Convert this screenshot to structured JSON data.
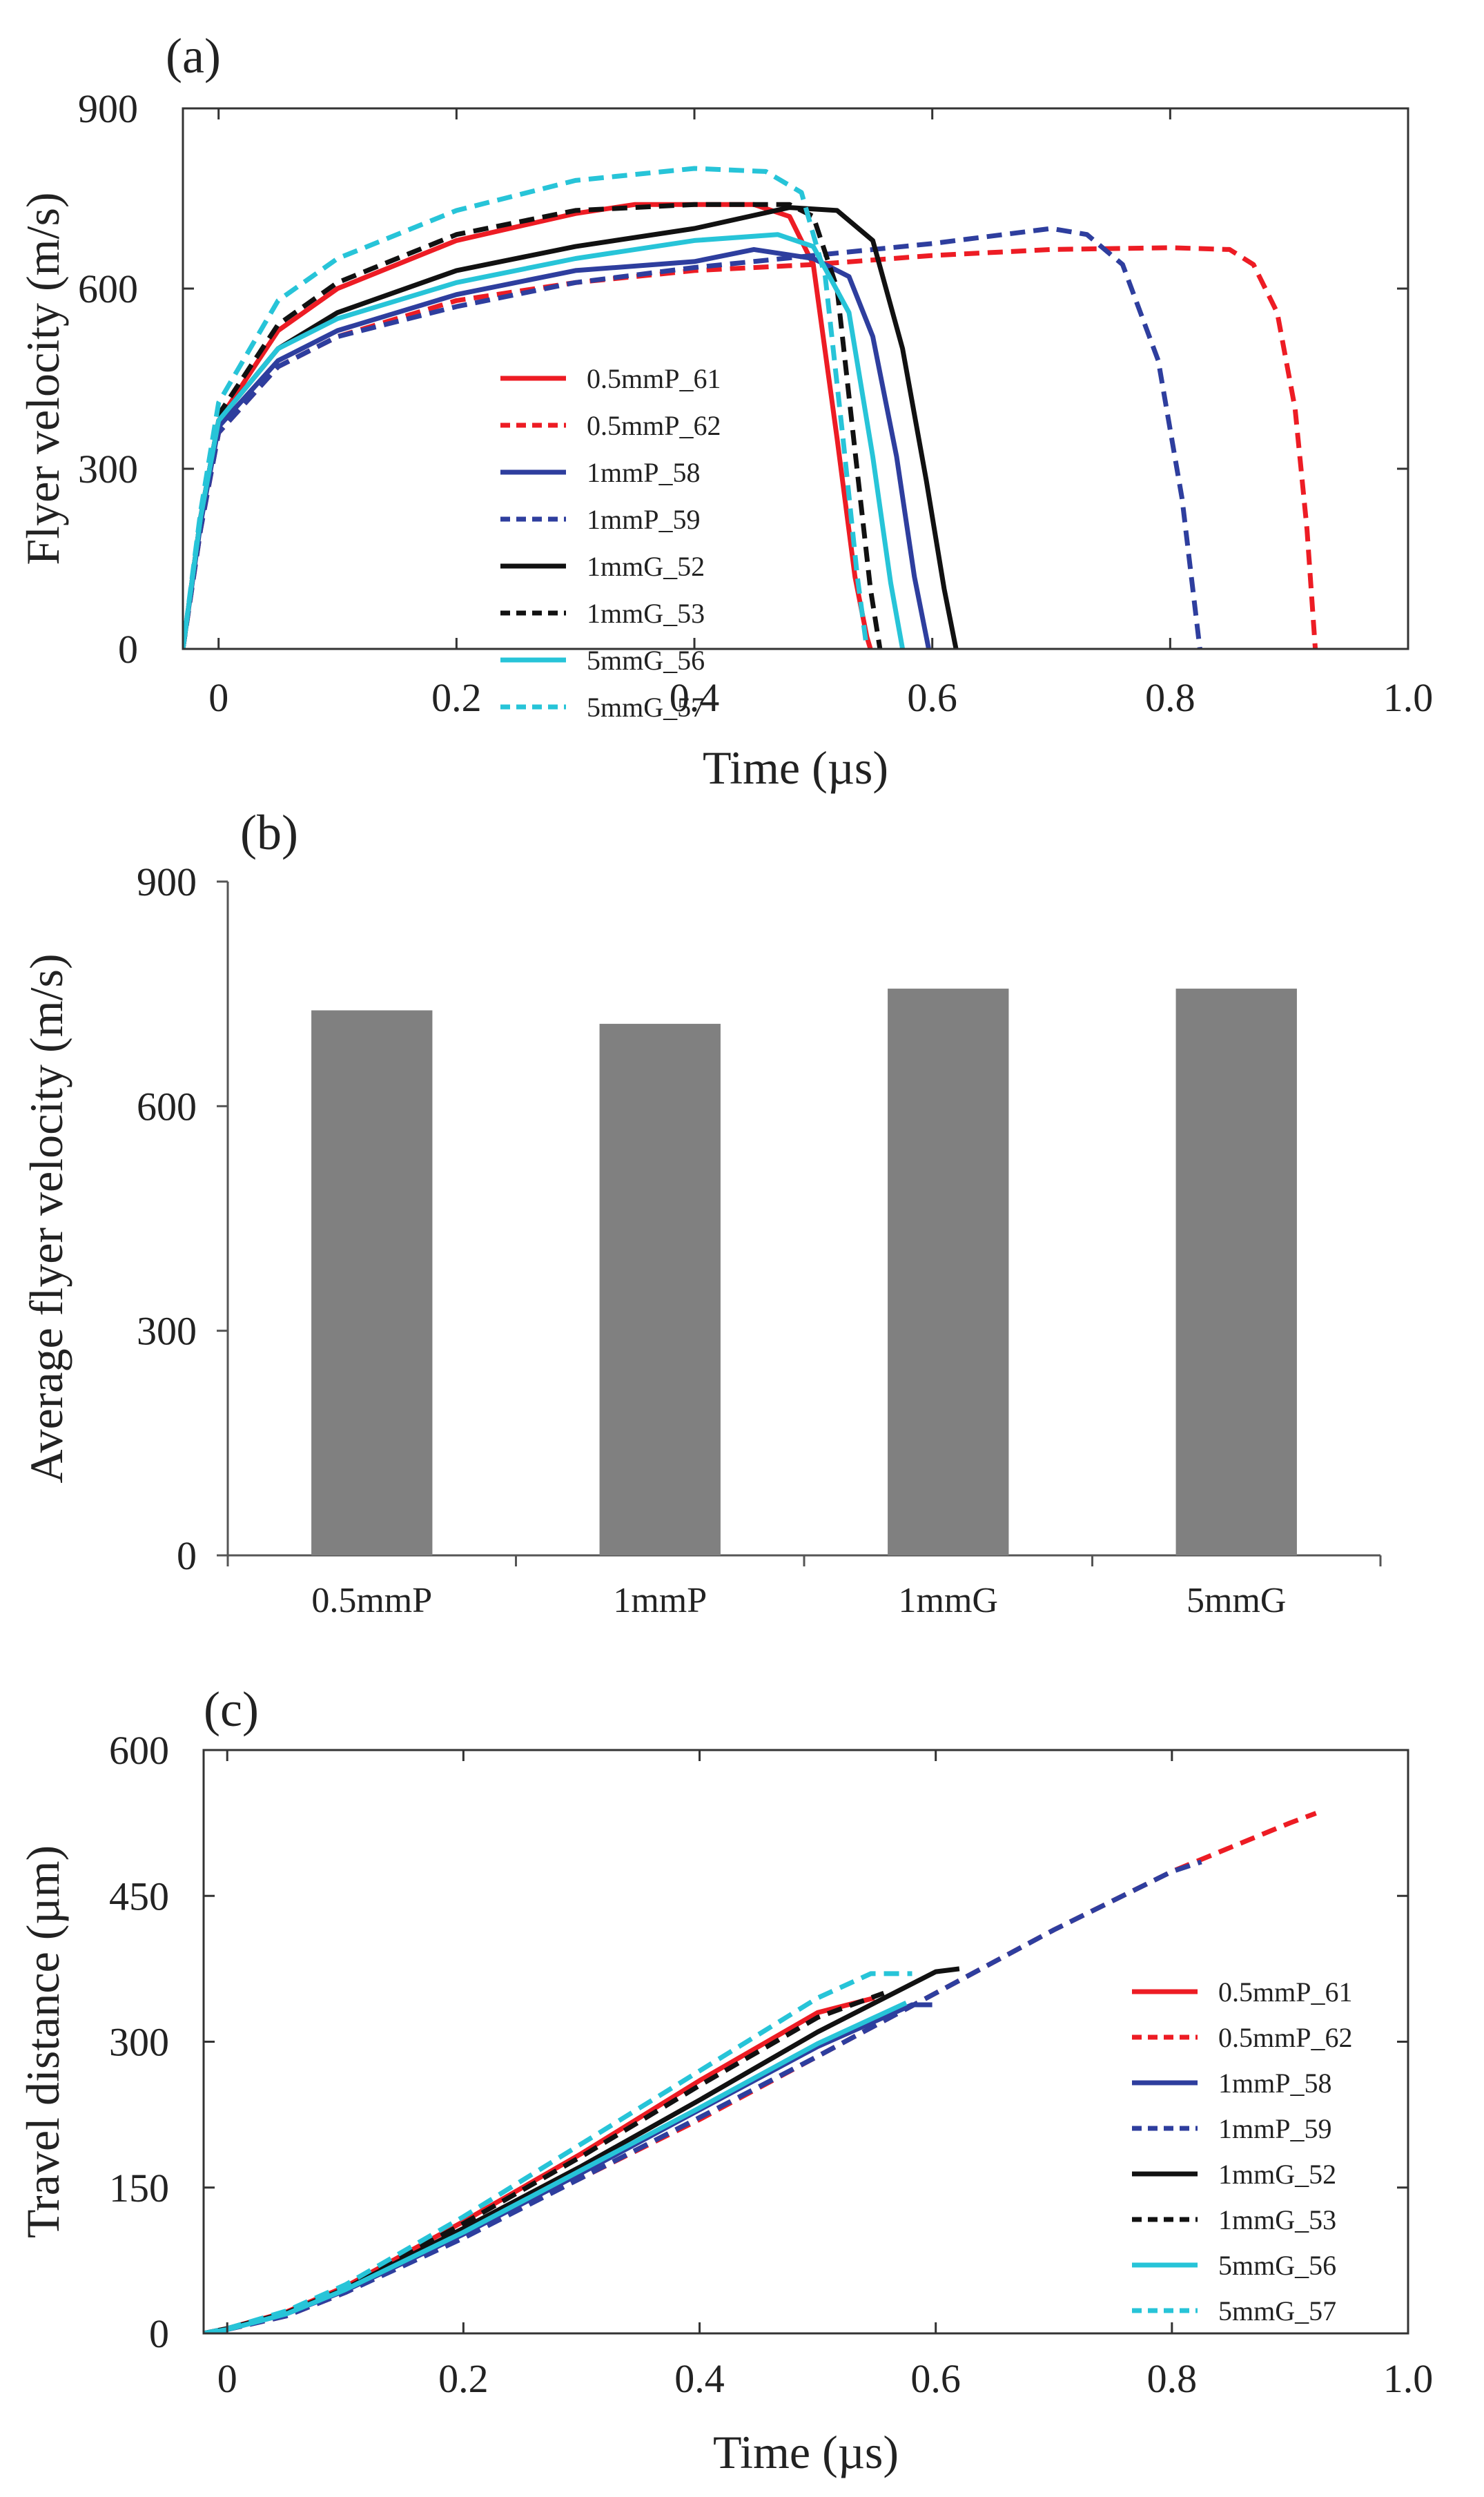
{
  "chart_data": [
    {
      "panel": "(a)",
      "type": "line",
      "xlabel": "Time (µs)",
      "ylabel": "Flyer velocity (m/s)",
      "xlim": [
        -0.03,
        1.0
      ],
      "ylim": [
        0,
        900
      ],
      "xticks": [
        0,
        0.2,
        0.4,
        0.6,
        0.8,
        1.0
      ],
      "xtick_labels": [
        "0",
        "0.2",
        "0.4",
        "0.6",
        "0.8",
        "1.0"
      ],
      "yticks": [
        0,
        300,
        600,
        900
      ],
      "ytick_labels": [
        "0",
        "300",
        "600",
        "900"
      ],
      "legend_position": "center",
      "series": [
        {
          "name": "0.5mmP_61",
          "color": "#ed1c24",
          "dash": "solid",
          "x": [
            -0.03,
            -0.015,
            0.0,
            0.05,
            0.1,
            0.2,
            0.3,
            0.35,
            0.45,
            0.48,
            0.5,
            0.52,
            0.535,
            0.545,
            0.548
          ],
          "y": [
            0,
            220,
            380,
            530,
            600,
            680,
            725,
            740,
            740,
            720,
            640,
            350,
            120,
            20,
            0
          ]
        },
        {
          "name": "0.5mmP_62",
          "color": "#ed1c24",
          "dash": "dash",
          "x": [
            -0.03,
            -0.015,
            0.0,
            0.05,
            0.1,
            0.2,
            0.3,
            0.4,
            0.5,
            0.6,
            0.7,
            0.8,
            0.85,
            0.87,
            0.89,
            0.905,
            0.915,
            0.922
          ],
          "y": [
            0,
            200,
            360,
            470,
            520,
            580,
            610,
            630,
            640,
            655,
            665,
            668,
            665,
            640,
            560,
            400,
            200,
            0
          ]
        },
        {
          "name": "1mmP_58",
          "color": "#2e3e9e",
          "dash": "solid",
          "x": [
            -0.03,
            -0.015,
            0.0,
            0.05,
            0.1,
            0.2,
            0.3,
            0.4,
            0.45,
            0.5,
            0.53,
            0.55,
            0.57,
            0.585,
            0.597
          ],
          "y": [
            0,
            210,
            370,
            480,
            530,
            590,
            630,
            645,
            665,
            650,
            620,
            520,
            320,
            120,
            0
          ]
        },
        {
          "name": "1mmP_59",
          "color": "#2e3e9e",
          "dash": "dash",
          "x": [
            -0.03,
            -0.015,
            0.0,
            0.05,
            0.1,
            0.2,
            0.3,
            0.4,
            0.5,
            0.6,
            0.7,
            0.73,
            0.76,
            0.79,
            0.81,
            0.825
          ],
          "y": [
            0,
            200,
            360,
            470,
            520,
            570,
            610,
            635,
            655,
            675,
            700,
            690,
            640,
            480,
            250,
            0
          ]
        },
        {
          "name": "1mmG_52",
          "color": "#111111",
          "dash": "solid",
          "x": [
            -0.03,
            -0.015,
            0.0,
            0.05,
            0.1,
            0.2,
            0.3,
            0.4,
            0.48,
            0.52,
            0.55,
            0.575,
            0.595,
            0.61,
            0.62
          ],
          "y": [
            0,
            220,
            380,
            500,
            560,
            630,
            670,
            700,
            735,
            730,
            680,
            500,
            280,
            100,
            0
          ]
        },
        {
          "name": "1mmG_53",
          "color": "#111111",
          "dash": "dash",
          "x": [
            -0.03,
            -0.015,
            0.0,
            0.05,
            0.1,
            0.2,
            0.3,
            0.4,
            0.48,
            0.5,
            0.52,
            0.535,
            0.548,
            0.556
          ],
          "y": [
            0,
            220,
            390,
            540,
            610,
            690,
            730,
            740,
            740,
            720,
            600,
            330,
            100,
            0
          ]
        },
        {
          "name": "5mmG_56",
          "color": "#27c4d8",
          "dash": "solid",
          "x": [
            -0.03,
            -0.015,
            0.0,
            0.05,
            0.1,
            0.2,
            0.3,
            0.4,
            0.47,
            0.5,
            0.53,
            0.55,
            0.565,
            0.575
          ],
          "y": [
            0,
            220,
            380,
            500,
            550,
            610,
            650,
            680,
            690,
            670,
            560,
            320,
            110,
            0
          ]
        },
        {
          "name": "5mmG_57",
          "color": "#27c4d8",
          "dash": "dash",
          "x": [
            -0.03,
            -0.015,
            0.0,
            0.05,
            0.1,
            0.2,
            0.3,
            0.4,
            0.46,
            0.49,
            0.51,
            0.525,
            0.537,
            0.545
          ],
          "y": [
            0,
            230,
            410,
            580,
            650,
            730,
            780,
            800,
            795,
            760,
            620,
            350,
            120,
            0
          ]
        }
      ]
    },
    {
      "panel": "(b)",
      "type": "bar",
      "ylabel": "Average flyer velocity (m/s)",
      "ylim": [
        0,
        900
      ],
      "yticks": [
        0,
        300,
        600,
        900
      ],
      "ytick_labels": [
        "0",
        "300",
        "600",
        "900"
      ],
      "categories": [
        "0.5mmP",
        "1mmP",
        "1mmG",
        "5mmG"
      ],
      "values": [
        728,
        710,
        757,
        757
      ],
      "bar_color": "#808080"
    },
    {
      "panel": "(c)",
      "type": "line",
      "xlabel": "Time (µs)",
      "ylabel": "Travel distance (µm)",
      "xlim": [
        -0.02,
        1.0
      ],
      "ylim": [
        0,
        600
      ],
      "xticks": [
        0,
        0.2,
        0.4,
        0.6,
        0.8,
        1.0
      ],
      "xtick_labels": [
        "0",
        "0.2",
        "0.4",
        "0.6",
        "0.8",
        "1.0"
      ],
      "yticks": [
        0,
        150,
        300,
        450,
        600
      ],
      "ytick_labels": [
        "0",
        "150",
        "300",
        "450",
        "600"
      ],
      "legend_position": "lower right",
      "series": [
        {
          "name": "0.5mmP_61",
          "color": "#ed1c24",
          "dash": "solid",
          "x": [
            -0.02,
            0.0,
            0.05,
            0.1,
            0.2,
            0.3,
            0.4,
            0.5,
            0.548
          ],
          "y": [
            0,
            5,
            22,
            48,
            115,
            185,
            260,
            330,
            345
          ]
        },
        {
          "name": "0.5mmP_62",
          "color": "#ed1c24",
          "dash": "dash",
          "x": [
            -0.02,
            0.0,
            0.05,
            0.1,
            0.2,
            0.3,
            0.4,
            0.5,
            0.6,
            0.7,
            0.8,
            0.9,
            0.922
          ],
          "y": [
            0,
            4,
            18,
            42,
            100,
            160,
            220,
            285,
            350,
            415,
            475,
            525,
            535
          ]
        },
        {
          "name": "1mmP_58",
          "color": "#2e3e9e",
          "dash": "solid",
          "x": [
            -0.02,
            0.0,
            0.05,
            0.1,
            0.2,
            0.3,
            0.4,
            0.5,
            0.58,
            0.597
          ],
          "y": [
            0,
            4,
            20,
            44,
            102,
            165,
            230,
            295,
            338,
            338
          ]
        },
        {
          "name": "1mmP_59",
          "color": "#2e3e9e",
          "dash": "dash",
          "x": [
            -0.02,
            0.0,
            0.05,
            0.1,
            0.2,
            0.3,
            0.4,
            0.5,
            0.6,
            0.7,
            0.8,
            0.825
          ],
          "y": [
            0,
            4,
            18,
            42,
            98,
            160,
            222,
            285,
            350,
            415,
            475,
            485
          ]
        },
        {
          "name": "1mmG_52",
          "color": "#111111",
          "dash": "solid",
          "x": [
            -0.02,
            0.0,
            0.05,
            0.1,
            0.2,
            0.3,
            0.4,
            0.5,
            0.6,
            0.62
          ],
          "y": [
            0,
            5,
            21,
            46,
            108,
            172,
            240,
            310,
            372,
            375
          ]
        },
        {
          "name": "1mmG_53",
          "color": "#111111",
          "dash": "dash",
          "x": [
            -0.02,
            0.0,
            0.05,
            0.1,
            0.2,
            0.3,
            0.4,
            0.5,
            0.556
          ],
          "y": [
            0,
            5,
            22,
            48,
            113,
            182,
            255,
            325,
            350
          ]
        },
        {
          "name": "5mmG_56",
          "color": "#27c4d8",
          "dash": "solid",
          "x": [
            -0.02,
            0.0,
            0.05,
            0.1,
            0.2,
            0.3,
            0.4,
            0.5,
            0.575
          ],
          "y": [
            0,
            4,
            20,
            45,
            104,
            168,
            232,
            298,
            340
          ]
        },
        {
          "name": "5mmG_57",
          "color": "#27c4d8",
          "dash": "dash",
          "x": [
            -0.02,
            0.0,
            0.05,
            0.1,
            0.2,
            0.3,
            0.4,
            0.5,
            0.545,
            0.58
          ],
          "y": [
            0,
            5,
            23,
            50,
            120,
            195,
            270,
            345,
            370,
            370
          ]
        }
      ]
    }
  ]
}
